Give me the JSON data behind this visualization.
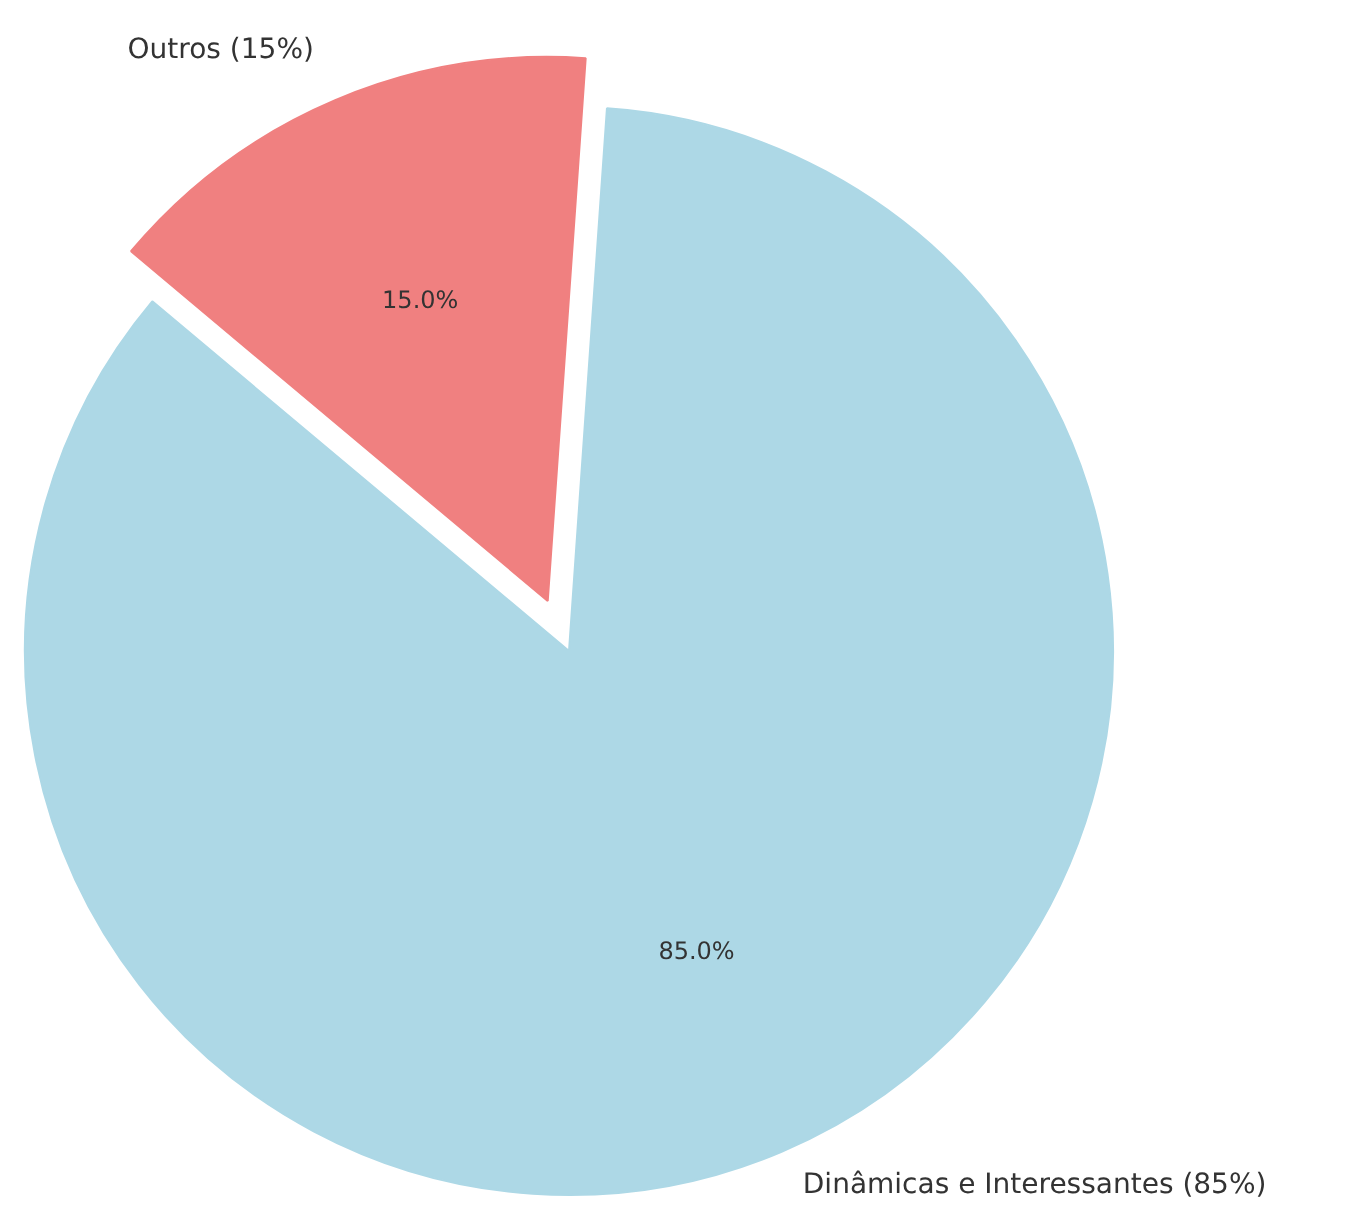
{
  "chart_data": {
    "type": "pie",
    "categories": [
      "Dinâmicas e Interessantes (85%)",
      "Outros (15%)"
    ],
    "values": [
      85,
      15
    ],
    "colors": [
      "#add8e6",
      "#f08080"
    ],
    "value_labels": [
      "85.0%",
      "15.0%"
    ]
  }
}
